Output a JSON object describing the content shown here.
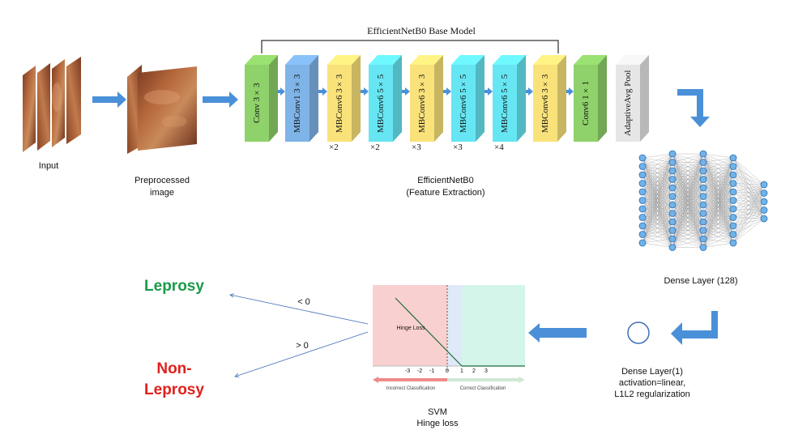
{
  "title": "EfficientNetB0 Base Model",
  "input_label": "Input",
  "preprocessed_label": [
    "Preprocessed",
    "image"
  ],
  "feature_label": [
    "EfficientNetB0",
    "(Feature Extraction)"
  ],
  "blocks": [
    {
      "label": "Conv 3×3",
      "color": "#8fd16a",
      "mult": ""
    },
    {
      "label": "MBConv1 3×3",
      "color": "#7fb4e8",
      "mult": ""
    },
    {
      "label": "MBConv6 3×3",
      "color": "#f9e27a",
      "mult": "×2"
    },
    {
      "label": "MBConv6 5×5",
      "color": "#66e6f2",
      "mult": "×2"
    },
    {
      "label": "MBConv6 3×3",
      "color": "#f9e27a",
      "mult": "×3"
    },
    {
      "label": "MBConv6 5×5",
      "color": "#66e6f2",
      "mult": "×3"
    },
    {
      "label": "MBConv6 5×5",
      "color": "#66e6f2",
      "mult": "×4"
    },
    {
      "label": "MBConv6 3×3",
      "color": "#f9e27a",
      "mult": ""
    },
    {
      "label": "Conv6 1×1",
      "color": "#8fd16a",
      "mult": ""
    },
    {
      "label": "AdaptiveAvg Pool",
      "color": "#e6e6e6",
      "mult": ""
    }
  ],
  "dense128_label": "Dense Layer (128)",
  "dense1_label": [
    "Dense Layer(1)",
    "activation=linear,",
    "L1L2 regularization"
  ],
  "svm_label": [
    "SVM",
    "Hinge loss"
  ],
  "hinge": {
    "inner_label": "Hinge Loss",
    "ticks": [
      "-3",
      "-2",
      "-1",
      "0",
      "1",
      "2",
      "3"
    ],
    "incorrect": "Incorrect Classification",
    "correct": "Correct Classification"
  },
  "outputs": {
    "leprosy": "Leprosy",
    "non_leprosy": [
      "Non-",
      "Leprosy"
    ],
    "lt0": "< 0",
    "gt0": "> 0",
    "leprosy_color": "#1a9a4a",
    "non_leprosy_color": "#e0201b"
  },
  "colors": {
    "arrow": "#4a90d9"
  }
}
